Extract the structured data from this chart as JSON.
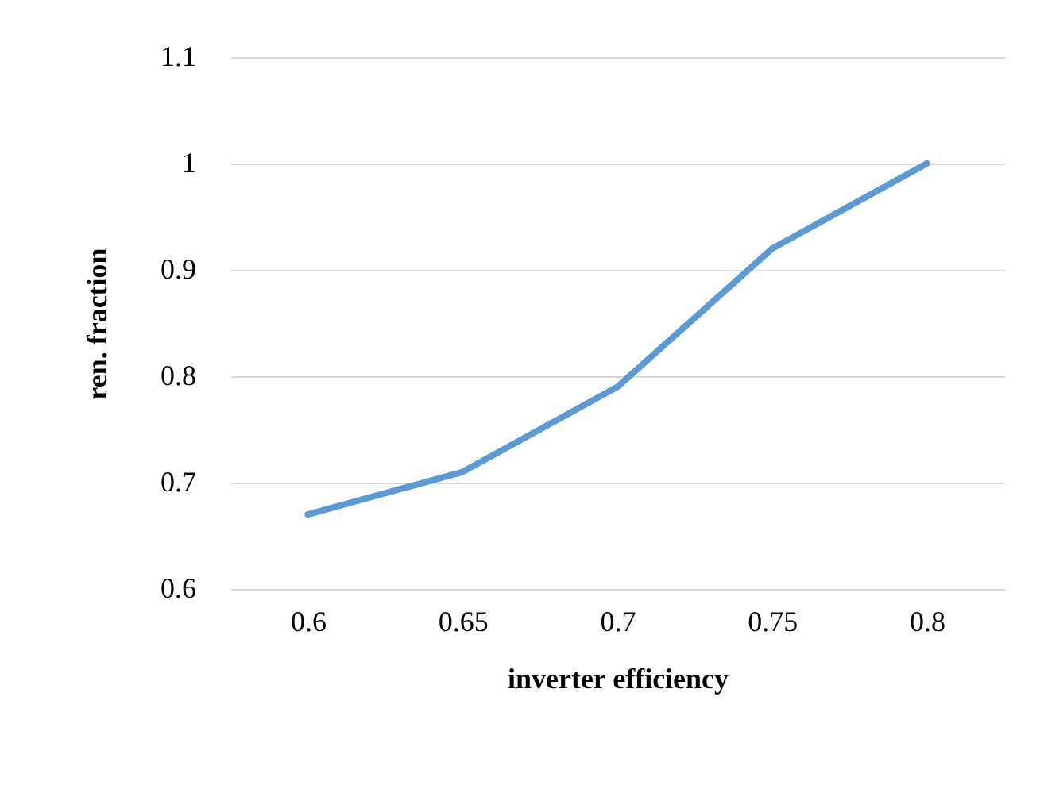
{
  "chart_data": {
    "type": "line",
    "xlabel": "inverter efficiency",
    "ylabel": "ren. fraction",
    "categories": [
      "0.6",
      "0.65",
      "0.7",
      "0.75",
      "0.8"
    ],
    "series": [
      {
        "color": "#5b9bd5",
        "values": [
          0.67,
          0.71,
          0.79,
          0.92,
          1.0
        ]
      }
    ],
    "ylim": [
      0.6,
      1.1
    ],
    "yticks": [
      0.6,
      0.7,
      0.8,
      0.9,
      1,
      1.1
    ],
    "grid": "y",
    "marker": "none",
    "line_style": "solid"
  }
}
